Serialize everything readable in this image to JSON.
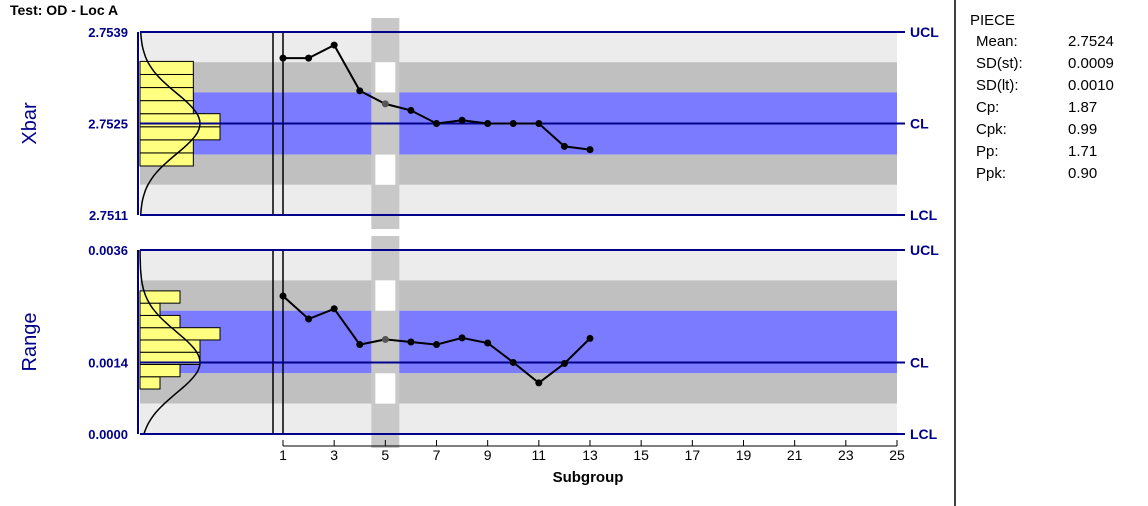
{
  "title": "Test: OD - Loc A",
  "colors": {
    "axis": "#00008b",
    "cl_band": "#7b7bff",
    "band_light": "#ececec",
    "band_mid": "#c0c0c0",
    "histogram": "#ffff80",
    "highlight_column": "#c8c8c8",
    "line": "#000000"
  },
  "chart_data": [
    {
      "type": "line",
      "ylabel": "Xbar",
      "ylim": [
        2.7511,
        2.7539
      ],
      "y_ticks": [
        "2.7539",
        "2.7525",
        "2.7511"
      ],
      "limit_labels": [
        "UCL",
        "CL",
        "LCL"
      ],
      "ucl": 2.7539,
      "cl": 2.7525,
      "lcl": 2.7511,
      "x": [
        1,
        2,
        3,
        4,
        5,
        6,
        7,
        8,
        9,
        10,
        11,
        12,
        13
      ],
      "values": [
        2.7535,
        2.7535,
        2.7537,
        2.753,
        2.7528,
        2.7527,
        2.7525,
        2.75255,
        2.7525,
        2.7525,
        2.7525,
        2.75215,
        2.7521
      ],
      "highlight_point": 5,
      "histogram": {
        "bin_edges": [
          2.75185,
          2.75205,
          2.75225,
          2.75245,
          2.75265,
          2.75285,
          2.75305,
          2.75325,
          2.75345
        ],
        "counts": [
          2,
          2,
          3,
          3,
          2,
          2,
          2,
          2
        ]
      }
    },
    {
      "type": "line",
      "ylabel": "Range",
      "ylim": [
        0.0,
        0.0036
      ],
      "y_ticks": [
        "0.0036",
        "0.0014",
        "0.0000"
      ],
      "limit_labels": [
        "UCL",
        "CL",
        "LCL"
      ],
      "ucl": 0.0036,
      "cl": 0.0014,
      "lcl": 0.0,
      "x": [
        1,
        2,
        3,
        4,
        5,
        6,
        7,
        8,
        9,
        10,
        11,
        12,
        13
      ],
      "values": [
        0.0027,
        0.00225,
        0.00245,
        0.00175,
        0.00185,
        0.0018,
        0.00175,
        0.00188,
        0.00178,
        0.0014,
        0.001,
        0.00138,
        0.00187
      ],
      "highlight_point": 5,
      "histogram": {
        "bin_edges": [
          0.00088,
          0.00112,
          0.00136,
          0.0016,
          0.00184,
          0.00208,
          0.00232,
          0.00256,
          0.0028
        ],
        "counts": [
          1,
          2,
          3,
          3,
          4,
          2,
          1,
          2
        ]
      }
    }
  ],
  "x_axis": {
    "label": "Subgroup",
    "ticks": [
      "1",
      "3",
      "5",
      "7",
      "9",
      "11",
      "13",
      "15",
      "17",
      "19",
      "21",
      "23",
      "25"
    ],
    "min": 1,
    "max": 25
  },
  "stats": {
    "title": "PIECE",
    "rows": [
      {
        "label": "Mean:",
        "value": "2.7524"
      },
      {
        "label": "SD(st):",
        "value": "0.0009"
      },
      {
        "label": "SD(lt):",
        "value": "0.0010"
      },
      {
        "label": "Cp:",
        "value": "1.87"
      },
      {
        "label": "Cpk:",
        "value": "0.99"
      },
      {
        "label": "Pp:",
        "value": "1.71"
      },
      {
        "label": "Ppk:",
        "value": "0.90"
      }
    ]
  }
}
